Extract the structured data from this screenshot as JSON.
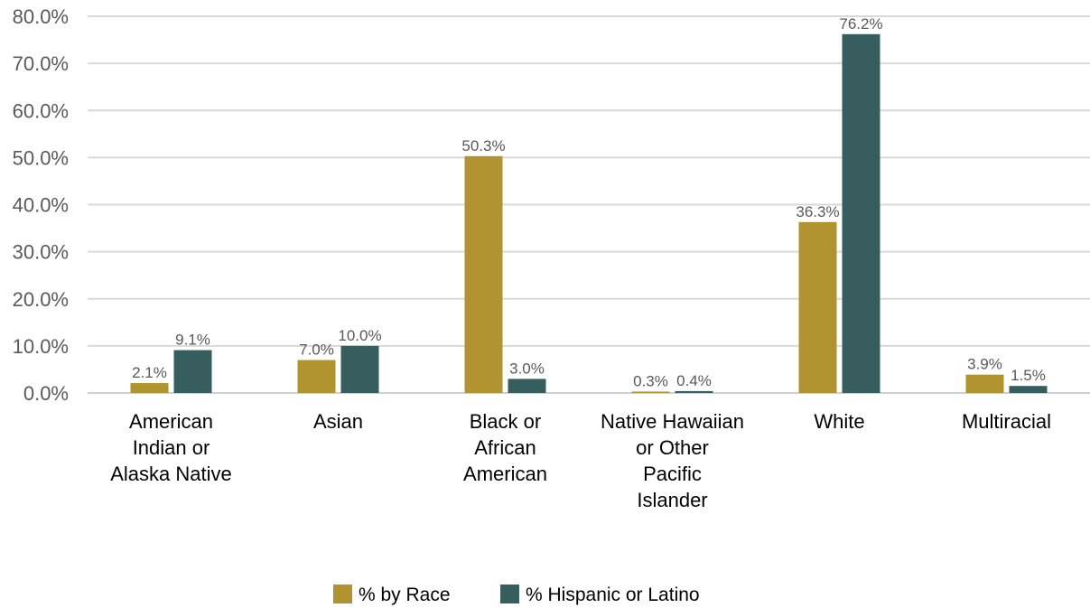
{
  "chart_data": {
    "type": "bar",
    "title": "",
    "xlabel": "",
    "ylabel": "",
    "ylim": [
      0,
      80
    ],
    "y_ticks": [
      "0.0%",
      "10.0%",
      "20.0%",
      "30.0%",
      "40.0%",
      "50.0%",
      "60.0%",
      "70.0%",
      "80.0%"
    ],
    "y_tick_values": [
      0,
      10,
      20,
      30,
      40,
      50,
      60,
      70,
      80
    ],
    "grid": true,
    "legend_position": "bottom",
    "categories": [
      [
        "American",
        "Indian or",
        "Alaska Native"
      ],
      [
        "Asian"
      ],
      [
        "Black or",
        "African",
        "American"
      ],
      [
        "Native Hawaiian",
        "or Other",
        "Pacific",
        "Islander"
      ],
      [
        "White"
      ],
      [
        "Multiracial"
      ]
    ],
    "series": [
      {
        "name": "% by Race",
        "color": "#B19330",
        "values": [
          2.1,
          7.0,
          50.3,
          0.3,
          36.3,
          3.9
        ],
        "labels": [
          "2.1%",
          "7.0%",
          "50.3%",
          "0.3%",
          "36.3%",
          "3.9%"
        ]
      },
      {
        "name": "% Hispanic or Latino",
        "color": "#365E5E",
        "values": [
          9.1,
          10.0,
          3.0,
          0.4,
          76.2,
          1.5
        ],
        "labels": [
          "9.1%",
          "10.0%",
          "3.0%",
          "0.4%",
          "76.2%",
          "1.5%"
        ]
      }
    ]
  }
}
